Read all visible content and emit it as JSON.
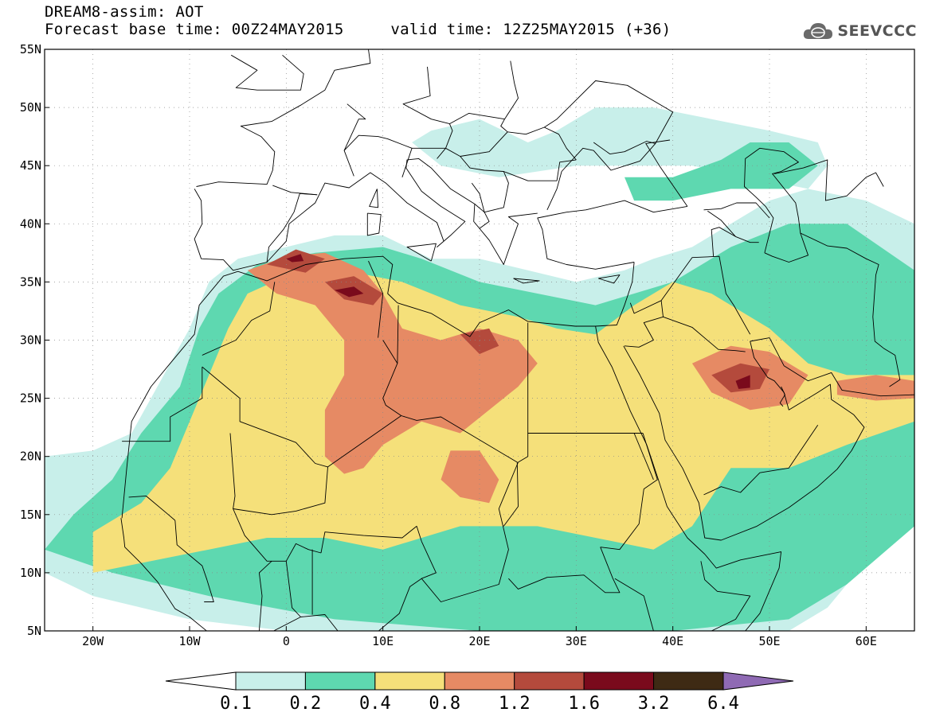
{
  "title": {
    "line1": "DREAM8-assim: AOT",
    "base_label": "Forecast base time: 00Z24MAY2015",
    "valid_label": "valid time: 12Z25MAY2015 (+36)"
  },
  "logo": {
    "text": "SEEVCCC",
    "icon": "cloud-globe-icon"
  },
  "axes": {
    "lon_min": -25,
    "lon_max": 65,
    "lat_min": 5,
    "lat_max": 55,
    "x_ticks": [
      {
        "v": -20,
        "label": "20W"
      },
      {
        "v": -10,
        "label": "10W"
      },
      {
        "v": 0,
        "label": "0"
      },
      {
        "v": 10,
        "label": "10E"
      },
      {
        "v": 20,
        "label": "20E"
      },
      {
        "v": 30,
        "label": "30E"
      },
      {
        "v": 40,
        "label": "40E"
      },
      {
        "v": 50,
        "label": "50E"
      },
      {
        "v": 60,
        "label": "60E"
      }
    ],
    "y_ticks": [
      {
        "v": 55,
        "label": "55N"
      },
      {
        "v": 50,
        "label": "50N"
      },
      {
        "v": 45,
        "label": "45N"
      },
      {
        "v": 40,
        "label": "40N"
      },
      {
        "v": 35,
        "label": "35N"
      },
      {
        "v": 30,
        "label": "30N"
      },
      {
        "v": 25,
        "label": "25N"
      },
      {
        "v": 20,
        "label": "20N"
      },
      {
        "v": 15,
        "label": "15N"
      },
      {
        "v": 10,
        "label": "10N"
      },
      {
        "v": 5,
        "label": "5N"
      }
    ]
  },
  "colorbar": {
    "colors": [
      "#ffffff",
      "#c8efea",
      "#5ed8b0",
      "#f5e07a",
      "#e68a64",
      "#b44a3c",
      "#7a0a1c",
      "#3e2a14",
      "#8f6ab4"
    ],
    "labels": [
      "0.1",
      "0.2",
      "0.4",
      "0.8",
      "1.2",
      "1.6",
      "3.2",
      "6.4"
    ]
  },
  "regions": [
    {
      "level": 1,
      "pts": [
        [
          -25,
          20
        ],
        [
          -20,
          20.5
        ],
        [
          -16,
          22
        ],
        [
          -14,
          25
        ],
        [
          -12,
          28
        ],
        [
          -10,
          31
        ],
        [
          -8,
          35
        ],
        [
          -5,
          37
        ],
        [
          0,
          38
        ],
        [
          5,
          39
        ],
        [
          10,
          39
        ],
        [
          15,
          37
        ],
        [
          20,
          37
        ],
        [
          25,
          36
        ],
        [
          30,
          35
        ],
        [
          35,
          36
        ],
        [
          38,
          37
        ],
        [
          42,
          38
        ],
        [
          46,
          40
        ],
        [
          50,
          42
        ],
        [
          54,
          43
        ],
        [
          60,
          42
        ],
        [
          65,
          40
        ],
        [
          65,
          16
        ],
        [
          60,
          11
        ],
        [
          56,
          7
        ],
        [
          52,
          5
        ],
        [
          10,
          5
        ],
        [
          0,
          5
        ],
        [
          -10,
          6
        ],
        [
          -20,
          8
        ],
        [
          -25,
          10
        ]
      ]
    },
    {
      "level": 1,
      "pts": [
        [
          15,
          48
        ],
        [
          20,
          49
        ],
        [
          25,
          47
        ],
        [
          28,
          48
        ],
        [
          32,
          50
        ],
        [
          38,
          50
        ],
        [
          44,
          49
        ],
        [
          50,
          48
        ],
        [
          55,
          47
        ],
        [
          56,
          45
        ],
        [
          54,
          43
        ],
        [
          48,
          44
        ],
        [
          42,
          45
        ],
        [
          36,
          45
        ],
        [
          30,
          45
        ],
        [
          22,
          44
        ],
        [
          16,
          45
        ],
        [
          13,
          47
        ]
      ]
    },
    {
      "level": 2,
      "pts": [
        [
          -22,
          15
        ],
        [
          -18,
          18
        ],
        [
          -15,
          22
        ],
        [
          -11,
          26
        ],
        [
          -9,
          31
        ],
        [
          -7,
          34
        ],
        [
          -3,
          36.5
        ],
        [
          3,
          37.5
        ],
        [
          10,
          38
        ],
        [
          14,
          37
        ],
        [
          20,
          35
        ],
        [
          26,
          34
        ],
        [
          32,
          33
        ],
        [
          36,
          34
        ],
        [
          40,
          35
        ],
        [
          46,
          38
        ],
        [
          52,
          40
        ],
        [
          58,
          40
        ],
        [
          65,
          36
        ],
        [
          65,
          14
        ],
        [
          58,
          9
        ],
        [
          52,
          6
        ],
        [
          40,
          5
        ],
        [
          20,
          5
        ],
        [
          5,
          6
        ],
        [
          -8,
          8
        ],
        [
          -18,
          10
        ],
        [
          -25,
          12
        ]
      ]
    },
    {
      "level": 2,
      "pts": [
        [
          35,
          44
        ],
        [
          40,
          44
        ],
        [
          45,
          45.5
        ],
        [
          48,
          47
        ],
        [
          52,
          47
        ],
        [
          55,
          45
        ],
        [
          52,
          43
        ],
        [
          46,
          43
        ],
        [
          40,
          42
        ],
        [
          36,
          42
        ]
      ]
    },
    {
      "level": 3,
      "pts": [
        [
          -20,
          13.5
        ],
        [
          -15,
          16
        ],
        [
          -12,
          19
        ],
        [
          -10,
          23
        ],
        [
          -8,
          27
        ],
        [
          -6,
          31
        ],
        [
          -4,
          34
        ],
        [
          0,
          35.5
        ],
        [
          6,
          36
        ],
        [
          12,
          35
        ],
        [
          18,
          33
        ],
        [
          24,
          32
        ],
        [
          28,
          31
        ],
        [
          32,
          30.5
        ],
        [
          36,
          33
        ],
        [
          40,
          35
        ],
        [
          44,
          34
        ],
        [
          50,
          31
        ],
        [
          54,
          28
        ],
        [
          58,
          27
        ],
        [
          65,
          27
        ],
        [
          65,
          23
        ],
        [
          58,
          21
        ],
        [
          52,
          19
        ],
        [
          46,
          19
        ],
        [
          42,
          14
        ],
        [
          38,
          12
        ],
        [
          32,
          13
        ],
        [
          26,
          14
        ],
        [
          18,
          14
        ],
        [
          10,
          12
        ],
        [
          4,
          13
        ],
        [
          -2,
          13
        ],
        [
          -8,
          12
        ],
        [
          -14,
          11
        ],
        [
          -20,
          10
        ]
      ]
    },
    {
      "level": 4,
      "pts": [
        [
          -4,
          36
        ],
        [
          0,
          37.2
        ],
        [
          4,
          37.5
        ],
        [
          8,
          36
        ],
        [
          10,
          34
        ],
        [
          12,
          31
        ],
        [
          16,
          30
        ],
        [
          20,
          31
        ],
        [
          24,
          30
        ],
        [
          26,
          28
        ],
        [
          24,
          26
        ],
        [
          21,
          24
        ],
        [
          18,
          22
        ],
        [
          14,
          23
        ],
        [
          10,
          21
        ],
        [
          8,
          19
        ],
        [
          6,
          18.5
        ],
        [
          4,
          20
        ],
        [
          4,
          24
        ],
        [
          6,
          27
        ],
        [
          6,
          30
        ],
        [
          3,
          33
        ],
        [
          -1,
          34
        ]
      ]
    },
    {
      "level": 4,
      "pts": [
        [
          42,
          28
        ],
        [
          46,
          29.5
        ],
        [
          50,
          29
        ],
        [
          54,
          27
        ],
        [
          52,
          24.5
        ],
        [
          48,
          24
        ],
        [
          44,
          25.5
        ]
      ]
    },
    {
      "level": 4,
      "pts": [
        [
          17,
          20.5
        ],
        [
          20,
          20.5
        ],
        [
          22,
          18
        ],
        [
          21,
          16
        ],
        [
          18,
          16.5
        ],
        [
          16,
          18
        ]
      ]
    },
    {
      "level": 4,
      "pts": [
        [
          57,
          26.5
        ],
        [
          61,
          27
        ],
        [
          65,
          26.5
        ],
        [
          65,
          25
        ],
        [
          61,
          24.8
        ],
        [
          57,
          25.3
        ]
      ]
    },
    {
      "level": 5,
      "pts": [
        [
          -2,
          36.5
        ],
        [
          1,
          37.8
        ],
        [
          4,
          37
        ],
        [
          2,
          35.8
        ]
      ]
    },
    {
      "level": 5,
      "pts": [
        [
          4,
          35
        ],
        [
          7,
          35.5
        ],
        [
          10,
          34
        ],
        [
          9,
          33
        ],
        [
          6,
          33.5
        ]
      ]
    },
    {
      "level": 5,
      "pts": [
        [
          44,
          27
        ],
        [
          47,
          28
        ],
        [
          50,
          27.5
        ],
        [
          49,
          25.8
        ],
        [
          46,
          25.5
        ]
      ]
    },
    {
      "level": 5,
      "pts": [
        [
          18,
          30.5
        ],
        [
          21,
          31
        ],
        [
          22,
          29.5
        ],
        [
          20,
          28.8
        ]
      ]
    },
    {
      "level": 6,
      "pts": [
        [
          5,
          34.3
        ],
        [
          7,
          34.6
        ],
        [
          8,
          34
        ],
        [
          6.5,
          33.7
        ]
      ]
    },
    {
      "level": 6,
      "pts": [
        [
          46.5,
          26.5
        ],
        [
          48,
          27
        ],
        [
          48,
          25.9
        ],
        [
          46.8,
          25.8
        ]
      ]
    },
    {
      "level": 6,
      "pts": [
        [
          0,
          37
        ],
        [
          1.5,
          37.4
        ],
        [
          1.8,
          36.8
        ],
        [
          0.6,
          36.7
        ]
      ]
    }
  ]
}
